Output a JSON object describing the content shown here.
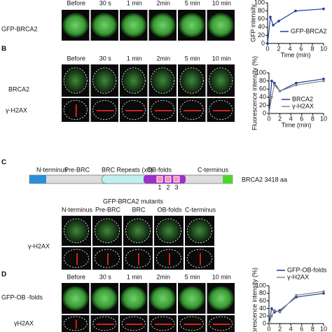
{
  "panel_a": {
    "columns": [
      "Before",
      "30 s",
      "1 min",
      "2min",
      "5 min",
      "10 min"
    ],
    "row_labels": [
      "GFP-BRCA2"
    ]
  },
  "panel_b": {
    "label": "B",
    "columns": [
      "Before",
      "30 s",
      "1 min",
      "2min",
      "5 min",
      "10 min"
    ],
    "row_labels": [
      "BRCA2",
      "γ-H2AX"
    ]
  },
  "panel_c": {
    "label": "C",
    "domains": [
      "N-terminus",
      "Pre-BRC",
      "BRC Repeats (x8)",
      "OB-folds",
      "C-terminus"
    ],
    "ob_numbers": [
      "1",
      "2",
      "3"
    ],
    "protein": "BRCA2 3418 aa",
    "mutants_title": "GFP-BRCA2 mutants",
    "columns": [
      "N-terminus",
      "Pre-BRC",
      "BRC",
      "OB-folds",
      "C-terminus"
    ],
    "row_labels": [
      "γ-H2AX"
    ]
  },
  "panel_d": {
    "label": "D",
    "columns": [
      "Before",
      "30 s",
      "1 min",
      "2min",
      "5 min",
      "10 min"
    ],
    "row_labels": [
      "GFP-OB -folds",
      "γH2AX"
    ]
  },
  "chart_data": [
    {
      "type": "line",
      "y_label": "GFP intensity",
      "x_label": "Time (min)",
      "x": [
        0,
        0.5,
        1,
        2,
        5,
        10
      ],
      "xlim": [
        0,
        10
      ],
      "xticks": [
        0,
        2,
        4,
        6,
        8,
        10
      ],
      "ylim": [
        0,
        100
      ],
      "yticks": [
        0,
        20,
        40,
        60,
        80,
        100
      ],
      "series": [
        {
          "name": "GFP-BRCA2",
          "color": "#1f3c99",
          "values": [
            0,
            65,
            45,
            55,
            80,
            85
          ]
        }
      ]
    },
    {
      "type": "line",
      "y_label": "Fluorescence intensity (%)",
      "x_label": "Time (min)",
      "x": [
        0,
        0.5,
        1,
        2,
        5,
        10
      ],
      "xlim": [
        0,
        10
      ],
      "xticks": [
        0,
        2,
        4,
        6,
        8,
        10
      ],
      "ylim": [
        0,
        100
      ],
      "yticks": [
        0,
        20,
        40,
        60,
        80,
        100
      ],
      "series": [
        {
          "name": "BRCA2",
          "color": "#1f3c99",
          "values": [
            0,
            80,
            75,
            55,
            75,
            85
          ]
        },
        {
          "name": "γ-H2AX",
          "color": "#888888",
          "values": [
            0,
            40,
            70,
            55,
            70,
            80
          ]
        }
      ]
    },
    {
      "type": "line",
      "y_label": "Fluorescence intensity (%)",
      "x": [
        0,
        0.5,
        1,
        2,
        5,
        10
      ],
      "xlim": [
        0,
        10
      ],
      "xticks": [
        0,
        2,
        4,
        6,
        8,
        10
      ],
      "ylim": [
        0,
        100
      ],
      "yticks": [
        0,
        20,
        40,
        60,
        80,
        100
      ],
      "series": [
        {
          "name": "GFP-OB-folds",
          "color": "#1f3c99",
          "values": [
            0,
            40,
            30,
            35,
            70,
            80
          ]
        },
        {
          "name": "γ-H2AX",
          "color": "#888888",
          "values": [
            0,
            20,
            35,
            30,
            75,
            85
          ]
        }
      ]
    }
  ]
}
